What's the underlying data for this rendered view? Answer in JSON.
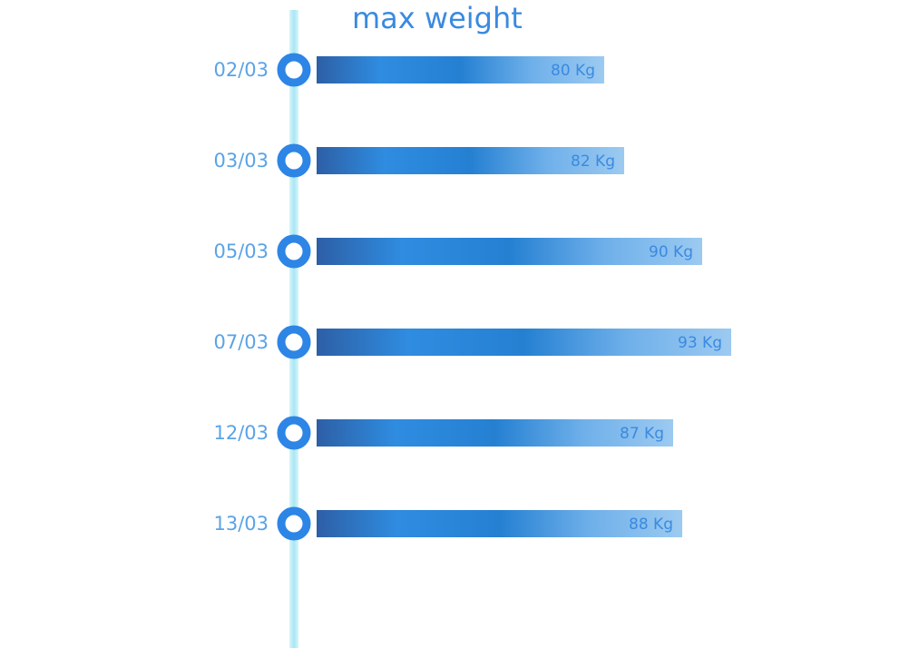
{
  "chart_data": {
    "type": "bar",
    "orientation": "horizontal",
    "title": "max weight",
    "unit": "Kg",
    "categories": [
      "02/03",
      "03/03",
      "05/03",
      "07/03",
      "12/03",
      "13/03"
    ],
    "values": [
      80,
      82,
      90,
      93,
      87,
      88
    ],
    "value_labels": [
      "80 Kg",
      "82 Kg",
      "90 Kg",
      "93 Kg",
      "87 Kg",
      "88 Kg"
    ],
    "grid": false,
    "legend": "none"
  },
  "colors": {
    "title": "#3a8ae0",
    "bar_start": "#2d5fa6",
    "bar_mid": "#2b86d6",
    "bar_end": "#8ec3ef",
    "timeline": "#bfeff8",
    "marker": "#2d85e6",
    "date_label": "#5aa3e6",
    "value_label": "#3a8ae0"
  }
}
